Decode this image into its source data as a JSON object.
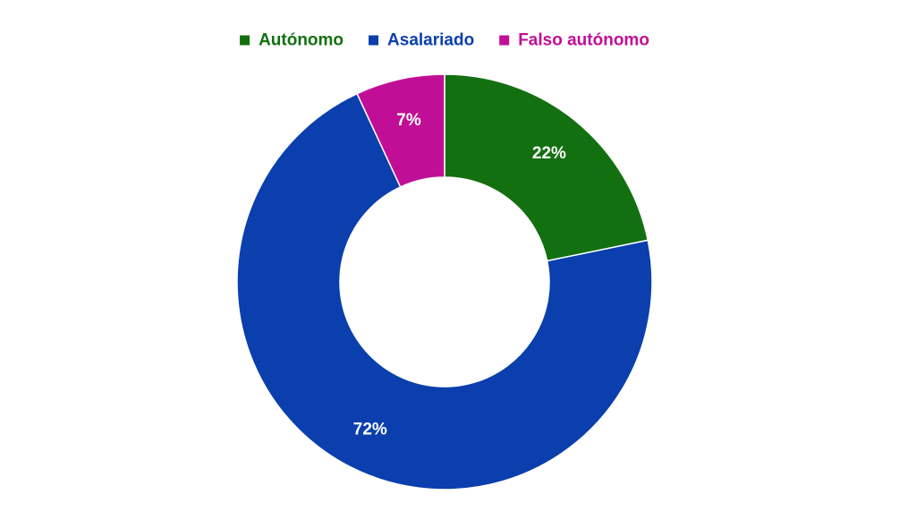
{
  "chart_data": {
    "type": "pie",
    "variant": "donut",
    "title": "",
    "legend_position": "top",
    "categories": [
      "Autónomo",
      "Asalariado",
      "Falso autónomo"
    ],
    "values": [
      22,
      72,
      7
    ],
    "labels": [
      "22%",
      "72%",
      "7%"
    ],
    "colors": [
      "#137010",
      "#0a3fad",
      "#c10e97"
    ],
    "start_angle_deg": 0,
    "direction": "clockwise"
  }
}
